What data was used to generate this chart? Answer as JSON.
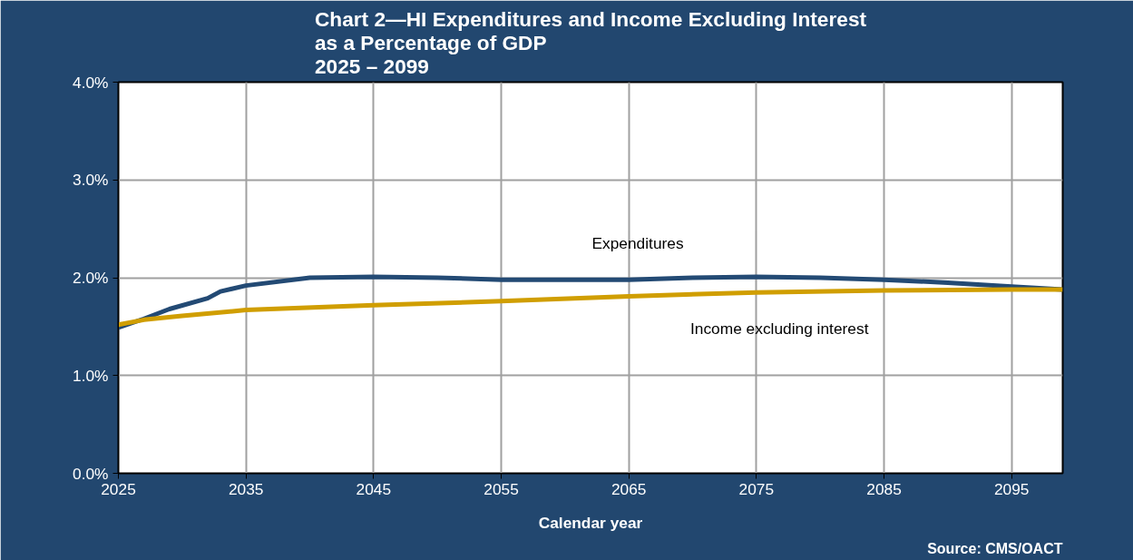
{
  "chart_data": {
    "type": "line",
    "title": "Chart 2—HI Expenditures and Income Excluding Interest\nas a Percentage of GDP\n2025 – 2099",
    "xlabel": "Calendar year",
    "annotations": [
      "Source: CMS/OACT"
    ],
    "xlim": [
      2025,
      2099
    ],
    "xticks": [
      2025,
      2035,
      2045,
      2055,
      2065,
      2075,
      2085,
      2095
    ],
    "ylim": [
      0,
      4
    ],
    "yticks": [
      {
        "value": 0,
        "label": "0.0%"
      },
      {
        "value": 1,
        "label": "1.0%"
      },
      {
        "value": 2,
        "label": "2.0%"
      },
      {
        "value": 3,
        "label": "3.0%"
      },
      {
        "value": 4,
        "label": "4.0%"
      }
    ],
    "grid": true,
    "legend": false,
    "marker": "none",
    "line_style": "solid",
    "series": [
      {
        "name": "Expenditures",
        "color": "#234a74",
        "x": [
          2025,
          2027,
          2029,
          2032,
          2033,
          2035,
          2040,
          2045,
          2050,
          2055,
          2060,
          2065,
          2070,
          2075,
          2080,
          2085,
          2090,
          2095,
          2099
        ],
        "values": [
          1.49,
          1.58,
          1.68,
          1.79,
          1.86,
          1.92,
          2.0,
          2.01,
          2.0,
          1.98,
          1.98,
          1.98,
          2.0,
          2.01,
          2.0,
          1.98,
          1.95,
          1.91,
          1.88
        ]
      },
      {
        "name": "Income excluding interest",
        "color": "#d09e00",
        "x": [
          2025,
          2027,
          2030,
          2035,
          2045,
          2055,
          2065,
          2075,
          2085,
          2095,
          2099
        ],
        "values": [
          1.52,
          1.57,
          1.61,
          1.67,
          1.72,
          1.76,
          1.81,
          1.85,
          1.87,
          1.88,
          1.88
        ]
      }
    ]
  }
}
